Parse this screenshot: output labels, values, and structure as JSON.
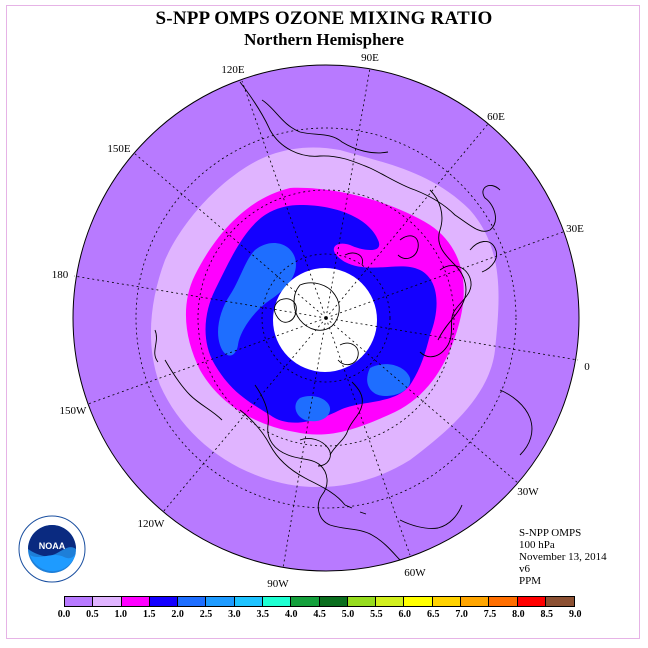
{
  "title": "S-NPP OMPS OZONE MIXING RATIO",
  "subtitle": "Northern Hemisphere",
  "longitude_labels": [
    "90E",
    "60E",
    "30E",
    "0",
    "30W",
    "60W",
    "90W",
    "120W",
    "150W",
    "180",
    "150E",
    "120E"
  ],
  "info": {
    "instrument": "S-NPP OMPS",
    "level": "100 hPa",
    "date": "November 13, 2014",
    "version": "v6",
    "units": "PPM"
  },
  "colorbar": {
    "ticks": [
      "0.0",
      "0.5",
      "1.0",
      "1.5",
      "2.0",
      "2.5",
      "3.0",
      "3.5",
      "4.0",
      "4.5",
      "5.0",
      "5.5",
      "6.0",
      "6.5",
      "7.0",
      "7.5",
      "8.0",
      "8.5",
      "9.0"
    ],
    "colors": [
      "#b87aff",
      "#e0b4ff",
      "#ff00ff",
      "#1400ff",
      "#1e6eff",
      "#1e9bff",
      "#1ec3ff",
      "#1effd2",
      "#14a03c",
      "#0a6e1e",
      "#96dc1e",
      "#d2f01e",
      "#ffff00",
      "#ffd200",
      "#ffa500",
      "#ff6e00",
      "#ff0000",
      "#8c5032"
    ]
  },
  "logo_text": "NOAA",
  "colors": {
    "level_0_0_5": "#b87aff",
    "level_0_5_1_0": "#e0b4ff",
    "level_1_0_1_5": "#ff00ff",
    "level_1_5_2_0": "#1400ff",
    "level_2_0_2_5": "#1e6eff",
    "no_data": "#ffffff"
  }
}
